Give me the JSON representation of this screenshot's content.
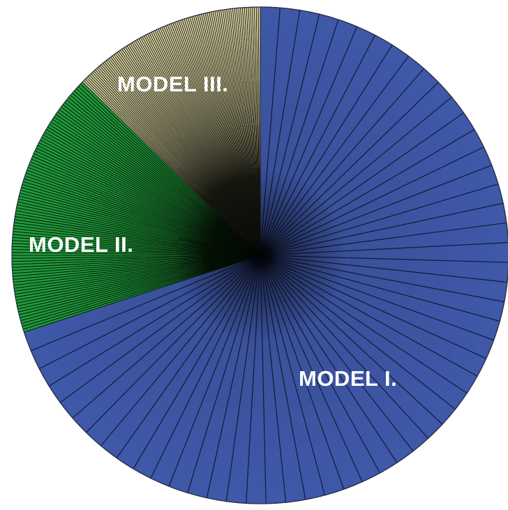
{
  "chart_data": {
    "type": "pie",
    "title": "",
    "groups": [
      {
        "name": "MODEL I.",
        "slices": 55,
        "share_percent": 70.0,
        "color": "#3f58a8",
        "line_color": "#121a38"
      },
      {
        "name": "MODEL II.",
        "slices": 90,
        "share_percent": 17.3,
        "color": "#1f9a3c",
        "line_color": "#061807"
      },
      {
        "name": "MODEL III.",
        "slices": 100,
        "share_percent": 12.7,
        "color": "#ddd7a6",
        "line_color": "#1a1a12"
      }
    ],
    "start_angle": "top (12 o'clock), clockwise",
    "legend": "none (labels placed on slices)",
    "grid": false
  }
}
